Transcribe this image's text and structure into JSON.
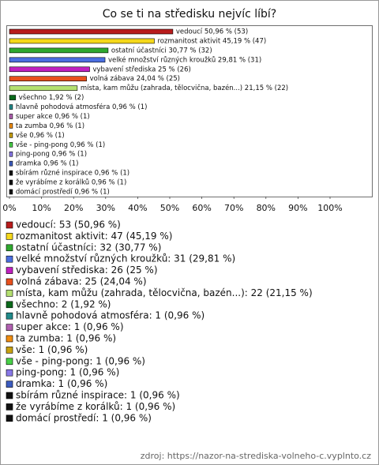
{
  "chart_data": {
    "type": "barh",
    "title": "Co se ti na středisku nejvíc líbí?",
    "categories": [
      "vedoucí",
      "rozmanitost aktivit",
      "ostatní účastníci",
      "velké množství různých kroužků",
      "vybavení střediska",
      "volná zábava",
      "místa, kam můžu (zahrada, tělocvična, bazén...)",
      "všechno",
      "hlavně pohodová atmosféra",
      "super akce",
      "ta zumba",
      "vše",
      "vše - ping-pong",
      "ping-pong",
      "dramka",
      "sbírám různé inspirace",
      "že vyrábíme z korálků",
      "domácí prostředí"
    ],
    "values": [
      50.96,
      45.19,
      30.77,
      29.81,
      25,
      24.04,
      21.15,
      1.92,
      0.96,
      0.96,
      0.96,
      0.96,
      0.96,
      0.96,
      0.96,
      0.96,
      0.96,
      0.96
    ],
    "value_labels": [
      "vedoucí 50,96 % (53)",
      "rozmanitost aktivit 45,19 % (47)",
      "ostatní účastníci 30,77 % (32)",
      "velké množství různých kroužků 29,81 % (31)",
      "vybavení střediska 25 % (26)",
      "volná zábava 24,04 % (25)",
      "místa, kam můžu (zahrada, tělocvična, bazén...) 21,15 % (22)",
      "všechno 1,92 % (2)",
      "hlavně pohodová atmosféra 0,96 % (1)",
      "super akce 0,96 % (1)",
      "ta zumba 0,96 % (1)",
      "vše 0,96 % (1)",
      "vše - ping-pong 0,96 % (1)",
      "ping-pong 0,96 % (1)",
      "dramka 0,96 % (1)",
      "sbírám různé inspirace 0,96 % (1)",
      "že vyrábíme z korálků 0,96 % (1)",
      "domácí prostředí 0,96 % (1)"
    ],
    "legend_labels": [
      "vedoucí: 53 (50,96 %)",
      "rozmanitost aktivit: 47 (45,19 %)",
      "ostatní účastníci: 32 (30,77 %)",
      "velké množství různých kroužků: 31 (29,81 %)",
      "vybavení střediska: 26 (25 %)",
      "volná zábava: 25 (24,04 %)",
      "místa, kam můžu (zahrada, tělocvična, bazén...): 22 (21,15 %)",
      "všechno: 2 (1,92 %)",
      "hlavně pohodová atmosféra: 1 (0,96 %)",
      "super akce: 1 (0,96 %)",
      "ta zumba: 1 (0,96 %)",
      "vše: 1 (0,96 %)",
      "vše - ping-pong: 1 (0,96 %)",
      "ping-pong: 1 (0,96 %)",
      "dramka: 1 (0,96 %)",
      "sbírám různé inspirace: 1 (0,96 %)",
      "že vyrábíme z korálků: 1 (0,96 %)",
      "domácí prostředí: 1 (0,96 %)"
    ],
    "colors": [
      "#b81c1c",
      "#f5d81a",
      "#2ea82e",
      "#4a6ee0",
      "#c020c0",
      "#e8501c",
      "#b4e070",
      "#0a6a1a",
      "#208a8a",
      "#b060b0",
      "#f08c10",
      "#c8a010",
      "#48d048",
      "#8878e8",
      "#3c5cc0",
      "#111111",
      "#111111",
      "#111111"
    ],
    "xlim": [
      0,
      100
    ],
    "xticks": [
      {
        "value": 0,
        "label": "0%"
      },
      {
        "value": 10,
        "label": "10%"
      },
      {
        "value": 20,
        "label": "20%"
      },
      {
        "value": 30,
        "label": "30%"
      },
      {
        "value": 40,
        "label": "40%"
      },
      {
        "value": 50,
        "label": "50%"
      },
      {
        "value": 60,
        "label": "60%"
      },
      {
        "value": 70,
        "label": "70%"
      },
      {
        "value": 80,
        "label": "80%"
      },
      {
        "value": 90,
        "label": "90%"
      },
      {
        "value": 100,
        "label": "100%"
      }
    ],
    "source": "zdroj: https://nazor-na-strediska-volneho-c.vyplnto.cz"
  }
}
